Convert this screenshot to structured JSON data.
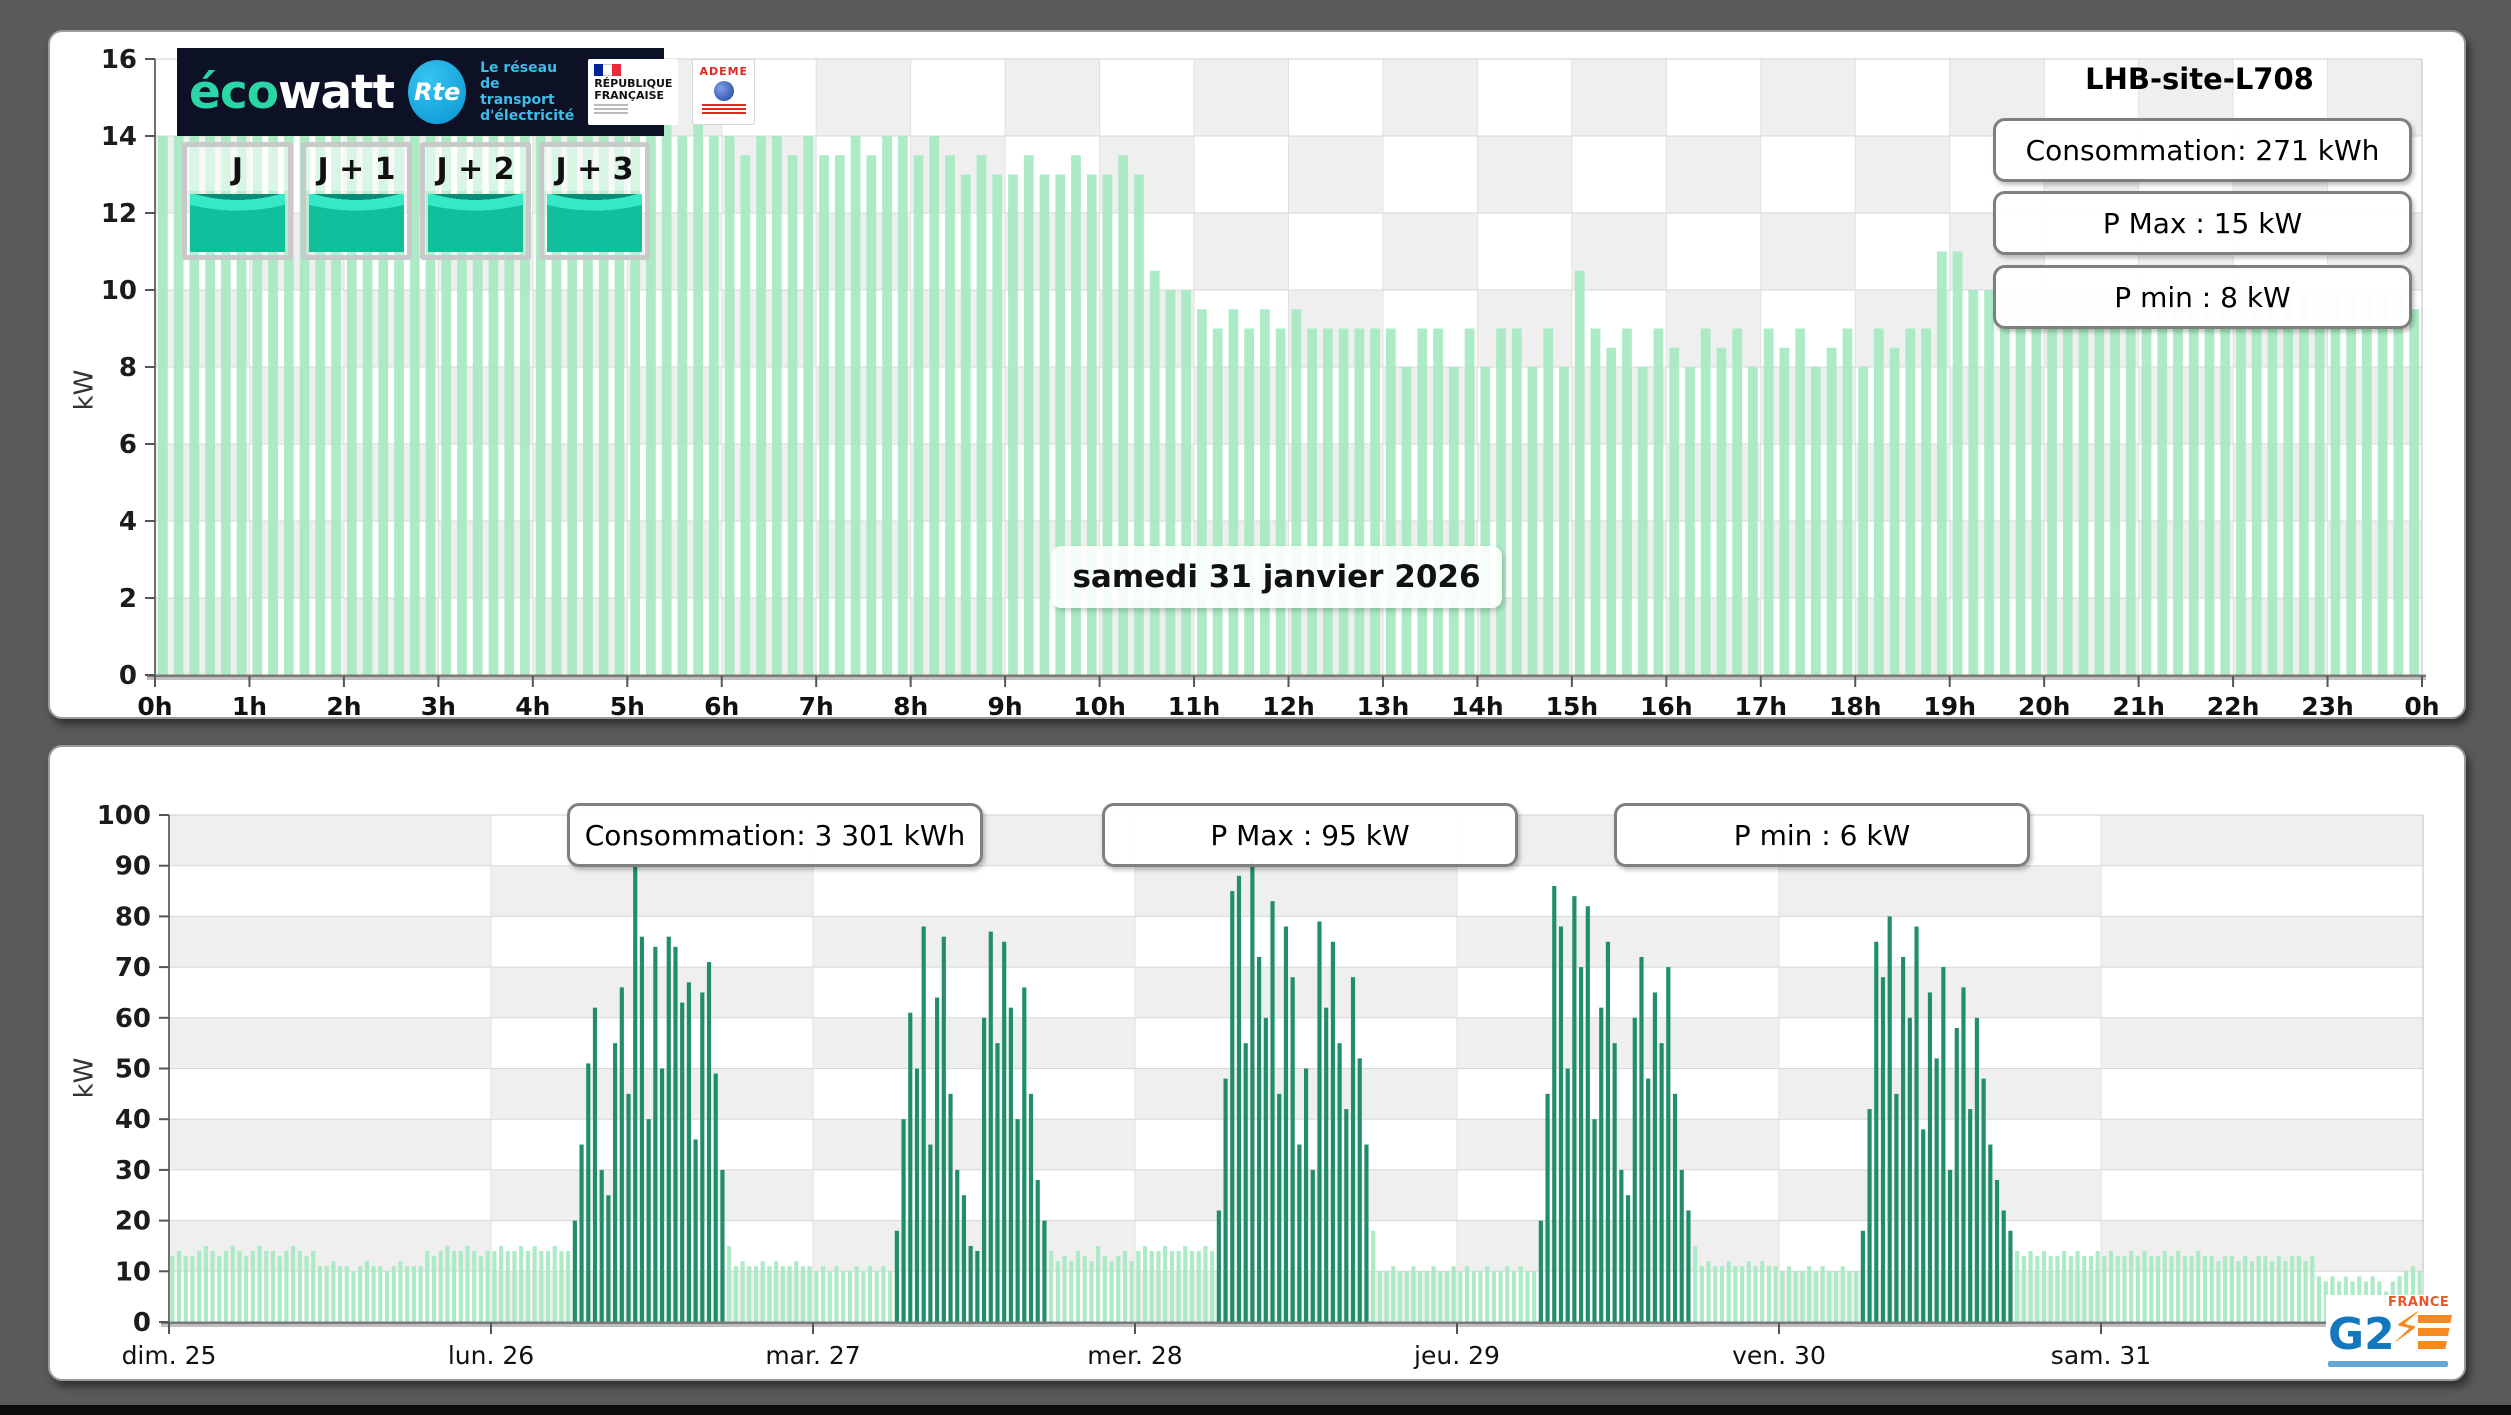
{
  "top": {
    "site": "LHB-site-L708",
    "stats": [
      "Consommation: 271 kWh",
      "P Max :  15 kW",
      "P min : 8 kW"
    ],
    "date_label": "samedi 31 janvier 2026",
    "ylabel": "kW",
    "gauge_days": [
      "J",
      "J + 1",
      "J + 2",
      "J + 3"
    ]
  },
  "bottom": {
    "stats": [
      "Consommation: 3 301 kWh",
      "P Max :  95 kW",
      "P min : 6 kW"
    ],
    "ylabel": "kW"
  },
  "ecowatt": {
    "brand_eco": "éco",
    "brand_watt": "watt",
    "rte": "Rte",
    "rte_tagline_1": "Le réseau",
    "rte_tagline_2": "de transport",
    "rte_tagline_3": "d'électricité",
    "republique": "RÉPUBLIQUE FRANÇAISE",
    "ademe": "ADEME"
  },
  "g2e": {
    "g2": "G2",
    "bolt": "⚡",
    "france": "FRANCE"
  },
  "colors": {
    "base_bar": "#a6e9c2",
    "peak_bar": "#1f8e69",
    "checker_gray": "#efefef",
    "checker_white": "#ffffff",
    "navy_logo_bg": "#0d1126",
    "teal_gauge": "#12bf9d"
  },
  "chart_data": [
    {
      "name": "day",
      "type": "bar",
      "title": "samedi 31 janvier 2026",
      "xlabels": [
        "0h",
        "1h",
        "2h",
        "3h",
        "4h",
        "5h",
        "6h",
        "7h",
        "8h",
        "9h",
        "10h",
        "11h",
        "12h",
        "13h",
        "14h",
        "15h",
        "16h",
        "17h",
        "18h",
        "19h",
        "20h",
        "21h",
        "22h",
        "23h",
        "0h"
      ],
      "ylabel": "kW",
      "ylim": [
        0,
        16
      ],
      "ytick_step": 2,
      "x_resolution": "10min",
      "annotations": [
        "Consommation: 271 kWh",
        "P Max :  15 kW",
        "P min : 8 kW"
      ],
      "values": [
        14,
        14,
        14,
        14,
        14,
        14,
        14,
        14,
        14,
        14,
        14,
        14,
        14,
        14,
        14,
        14,
        14,
        14,
        14,
        14,
        14,
        14,
        14,
        14,
        14,
        14,
        14,
        15,
        14,
        15,
        14,
        14,
        15,
        14,
        15,
        14,
        14,
        13.5,
        14,
        14,
        13.5,
        14,
        13.5,
        13.5,
        14,
        13.5,
        14,
        14,
        13.5,
        14,
        13.5,
        13,
        13.5,
        13,
        13,
        13.5,
        13,
        13,
        13.5,
        13,
        13,
        13.5,
        13,
        10.5,
        10,
        10,
        9.5,
        9,
        9.5,
        9,
        9.5,
        9,
        9.5,
        9,
        9,
        9,
        9,
        9,
        9,
        8,
        9,
        9,
        8,
        9,
        8,
        9,
        9,
        8,
        9,
        8,
        10.5,
        9,
        8.5,
        9,
        8,
        9,
        8.5,
        8,
        9,
        8.5,
        9,
        8,
        9,
        8.5,
        9,
        8,
        8.5,
        9,
        8,
        9,
        8.5,
        9,
        9,
        11,
        11,
        10,
        10,
        10,
        10,
        10,
        10,
        10,
        10,
        10,
        10,
        10,
        10,
        10,
        10,
        10,
        10,
        10,
        10,
        10,
        10,
        10,
        10,
        10,
        10,
        10,
        10,
        10,
        10,
        9.5
      ]
    },
    {
      "name": "week",
      "type": "bar",
      "xlabels": [
        "dim. 25",
        "lun. 26",
        "mar. 27",
        "mer. 28",
        "jeu. 29",
        "ven. 30",
        "sam. 31"
      ],
      "ylabel": "kW",
      "ylim": [
        0,
        100
      ],
      "ytick_step": 10,
      "x_resolution": "30min",
      "annotations": [
        "Consommation: 3 301 kWh",
        "P Max :  95 kW",
        "P min : 6 kW"
      ],
      "peak_periods": [
        {
          "from": 60,
          "to": 82
        },
        {
          "from": 108,
          "to": 130
        },
        {
          "from": 156,
          "to": 178
        },
        {
          "from": 204,
          "to": 226
        },
        {
          "from": 252,
          "to": 274
        }
      ],
      "values": [
        13,
        14,
        13,
        13,
        14,
        15,
        14,
        13,
        14,
        15,
        14,
        13,
        14,
        15,
        14,
        14,
        13,
        14,
        15,
        14,
        13,
        14,
        11,
        11,
        12,
        11,
        11,
        10,
        11,
        12,
        11,
        11,
        10,
        11,
        12,
        11,
        11,
        11,
        14,
        13,
        14,
        15,
        14,
        14,
        15,
        14,
        13,
        14,
        14,
        15,
        14,
        14,
        15,
        14,
        15,
        14,
        14,
        15,
        14,
        14,
        20,
        35,
        51,
        62,
        30,
        25,
        55,
        66,
        45,
        90,
        76,
        40,
        74,
        50,
        76,
        74,
        63,
        67,
        36,
        65,
        71,
        49,
        30,
        15,
        11,
        12,
        11,
        11,
        12,
        11,
        12,
        11,
        11,
        12,
        11,
        11,
        10,
        11,
        10,
        11,
        10,
        10,
        11,
        10,
        11,
        10,
        11,
        10,
        18,
        40,
        61,
        50,
        78,
        35,
        64,
        76,
        45,
        30,
        25,
        15,
        14,
        60,
        77,
        55,
        75,
        62,
        40,
        66,
        45,
        28,
        20,
        14,
        12,
        13,
        12,
        14,
        13,
        12,
        15,
        13,
        12,
        13,
        14,
        12,
        14,
        15,
        14,
        14,
        15,
        14,
        14,
        15,
        14,
        14,
        15,
        14,
        22,
        48,
        85,
        88,
        55,
        91,
        72,
        60,
        83,
        45,
        78,
        68,
        35,
        50,
        30,
        79,
        62,
        75,
        55,
        42,
        68,
        52,
        35,
        18,
        10,
        10,
        11,
        10,
        10,
        11,
        10,
        10,
        11,
        10,
        10,
        11,
        10,
        11,
        10,
        10,
        11,
        10,
        10,
        11,
        10,
        11,
        10,
        10,
        20,
        45,
        86,
        78,
        50,
        84,
        70,
        82,
        40,
        62,
        75,
        55,
        30,
        25,
        60,
        72,
        48,
        65,
        55,
        70,
        45,
        30,
        22,
        15,
        11,
        12,
        11,
        11,
        12,
        11,
        11,
        12,
        11,
        12,
        11,
        11,
        10,
        11,
        10,
        10,
        11,
        10,
        11,
        10,
        10,
        11,
        10,
        10,
        18,
        42,
        75,
        68,
        80,
        45,
        72,
        60,
        78,
        38,
        65,
        52,
        70,
        30,
        58,
        66,
        42,
        60,
        48,
        35,
        28,
        22,
        18,
        14,
        13,
        14,
        13,
        14,
        13,
        13,
        14,
        13,
        14,
        13,
        13,
        14,
        13,
        14,
        13,
        13,
        14,
        13,
        14,
        13,
        13,
        14,
        13,
        14,
        13,
        13,
        14,
        13,
        13,
        12,
        13,
        13,
        12,
        13,
        12,
        13,
        13,
        12,
        13,
        12,
        13,
        13,
        12,
        13,
        9,
        8,
        9,
        8,
        9,
        8,
        9,
        8,
        9,
        8,
        6,
        8,
        9,
        10,
        11,
        10
      ]
    }
  ]
}
